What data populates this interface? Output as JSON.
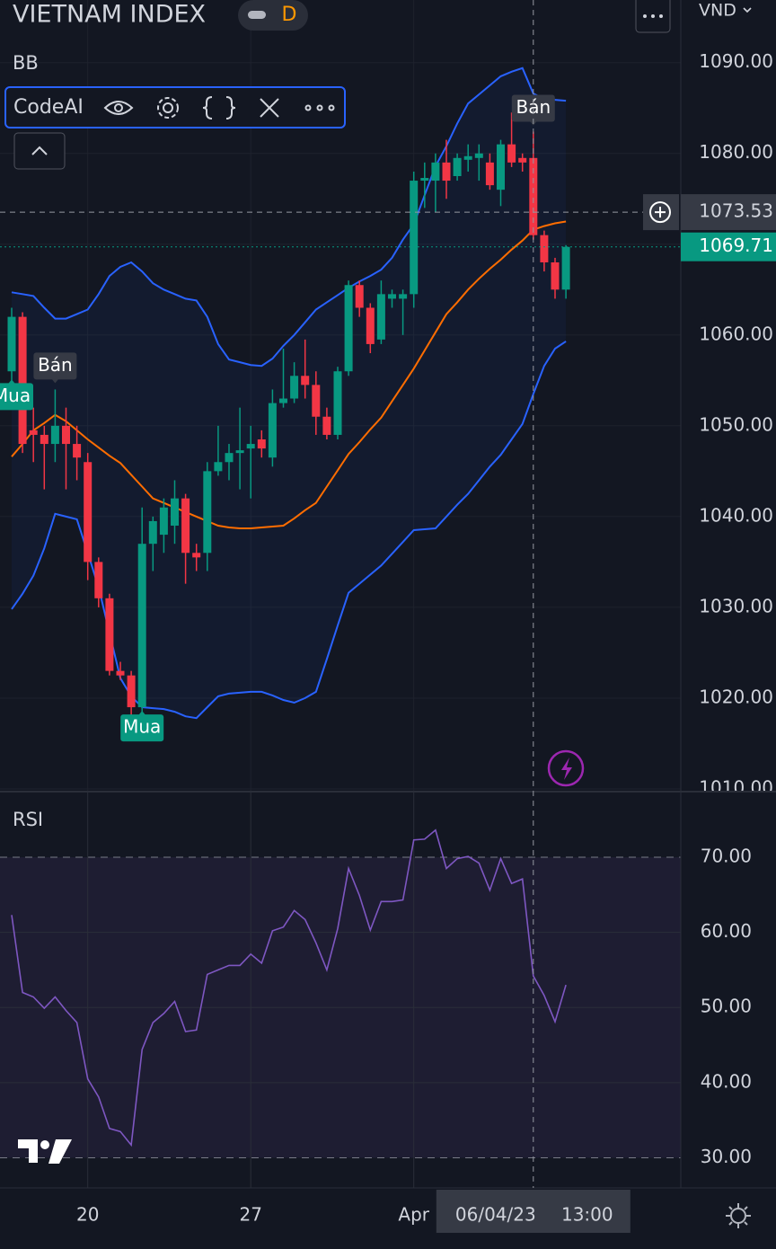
{
  "chart_data": [
    {
      "type": "candlestick",
      "title": "VIETNAM INDEX",
      "interval": "D",
      "currency": "VND",
      "panel": "CodeAI",
      "categories": [
        null,
        null,
        null,
        null,
        null,
        null,
        null,
        "20",
        null,
        null,
        null,
        null,
        null,
        null,
        null,
        null,
        null,
        null,
        null,
        null,
        null,
        null,
        "27",
        null,
        null,
        null,
        null,
        null,
        null,
        null,
        null,
        null,
        null,
        null,
        null,
        null,
        null,
        "Apr",
        null,
        null,
        null,
        null,
        null,
        null,
        null,
        null,
        null,
        null,
        null,
        null,
        null,
        null
      ],
      "open": [
        1056,
        1062,
        1049.5,
        1049,
        1048,
        1050,
        1048,
        1046,
        1035,
        1031,
        1023,
        1022.5,
        1019,
        1037,
        1038,
        1039,
        1042,
        1036,
        1036,
        1045,
        1046,
        1047,
        1047.5,
        1048.5,
        1046.5,
        1052.5,
        1053,
        1055.5,
        1054.5,
        1051,
        1049,
        1056,
        1065.5,
        1063,
        1059.5,
        1064,
        1064,
        1064.5,
        1077,
        1077,
        1079,
        1077.5,
        1079.3,
        1079.5,
        1079,
        1076,
        1081,
        1079.5,
        1079.5,
        1071,
        1068,
        1065
      ],
      "high": [
        1063,
        1062.5,
        1052,
        1050,
        1054,
        1052,
        1050,
        1047,
        1035.5,
        1031.5,
        1024,
        1023,
        1041,
        1040,
        1042,
        1044,
        1042.5,
        1037,
        1046,
        1050,
        1048,
        1052,
        1050,
        1049.5,
        1054,
        1058.5,
        1057,
        1059.5,
        1056,
        1052,
        1056.5,
        1066,
        1066,
        1063.5,
        1066,
        1065,
        1065,
        1078,
        1079,
        1080,
        1081.5,
        1080,
        1081,
        1081,
        1080,
        1081.5,
        1084.5,
        1080,
        1082.4,
        1071.5,
        1068.5,
        1069.9
      ],
      "low": [
        1055,
        1047,
        1046,
        1043,
        1046,
        1043,
        1044,
        1033,
        1030,
        1022.5,
        1022,
        1017,
        1018.5,
        1034,
        1036,
        1037,
        1032.6,
        1034,
        1034,
        1044.5,
        1044,
        1043,
        1042,
        1046.5,
        1045.5,
        1052,
        1052.5,
        1053,
        1049,
        1048.5,
        1048.5,
        1055.5,
        1062,
        1058,
        1059,
        1063,
        1060,
        1063,
        1074,
        1073.5,
        1075,
        1077,
        1078,
        1077,
        1076,
        1074.2,
        1078.5,
        1078,
        1070.5,
        1067,
        1064,
        1064
      ],
      "close": [
        1062,
        1048,
        1049,
        1048,
        1050,
        1048,
        1046.5,
        1035,
        1031,
        1023,
        1022.5,
        1019,
        1037,
        1039.5,
        1041,
        1042,
        1036,
        1035.5,
        1045,
        1046,
        1047,
        1047.3,
        1048,
        1047.5,
        1052.5,
        1053,
        1055.5,
        1054.5,
        1051,
        1049,
        1056,
        1065.5,
        1063,
        1059,
        1064.5,
        1064.5,
        1064.5,
        1077,
        1077.3,
        1079,
        1077,
        1079.5,
        1079.7,
        1080,
        1076.5,
        1081,
        1079,
        1079,
        1071,
        1068,
        1065,
        1069.71
      ],
      "up_color": "#089981",
      "down_color": "#f23645",
      "bb": {
        "name": "BB",
        "upper_color": "#2962ff",
        "middle_color": "#ff6d00",
        "fill": "#2962ff",
        "upper": [
          1064.7,
          1064.5,
          1064.3,
          1063,
          1061.8,
          1061.8,
          1062.3,
          1062.8,
          1064.5,
          1066.5,
          1067.5,
          1068,
          1067,
          1065.7,
          1065,
          1064.5,
          1064,
          1063.8,
          1062,
          1059,
          1057.3,
          1057,
          1056.7,
          1056.6,
          1057.4,
          1058.8,
          1060,
          1061.4,
          1062.8,
          1063.6,
          1064.4,
          1065.2,
          1065.9,
          1066.5,
          1067.2,
          1068.5,
          1070.5,
          1072.2,
          1075.4,
          1078.6,
          1080.8,
          1083.3,
          1085.5,
          1086.5,
          1087.5,
          1088.5,
          1089,
          1089.4,
          1086.6,
          1086,
          1085.9,
          1085.8
        ],
        "middle": [
          1046.6,
          1048,
          1049.5,
          1050.3,
          1051.2,
          1050.5,
          1049.5,
          1048.5,
          1047.6,
          1046.7,
          1045.9,
          1044.6,
          1043.3,
          1042,
          1041.5,
          1041,
          1040.5,
          1040,
          1039.5,
          1039,
          1038.8,
          1038.7,
          1038.7,
          1038.8,
          1038.9,
          1039,
          1039.8,
          1040.7,
          1041.5,
          1043.3,
          1045.1,
          1046.9,
          1048.2,
          1049.6,
          1050.9,
          1052.7,
          1054.5,
          1056.3,
          1058.3,
          1060.3,
          1062.3,
          1063.6,
          1065,
          1066.2,
          1067.3,
          1068.3,
          1069.4,
          1070.4,
          1071.6,
          1072,
          1072.3,
          1072.5
        ],
        "lower": [
          1029.8,
          1031.5,
          1033.5,
          1036.5,
          1040.3,
          1040,
          1039.7,
          1036,
          1032.2,
          1027.2,
          1022.2,
          1020.2,
          1019,
          1018.9,
          1018.8,
          1018.5,
          1018,
          1017.8,
          1019,
          1020.2,
          1020.5,
          1020.6,
          1020.7,
          1020.7,
          1020.3,
          1019.8,
          1019.5,
          1020,
          1020.7,
          1024.3,
          1028,
          1031.6,
          1032.6,
          1033.6,
          1034.6,
          1035.9,
          1037.2,
          1038.5,
          1038.6,
          1038.7,
          1040,
          1041.3,
          1042.5,
          1044,
          1045.5,
          1046.8,
          1048.5,
          1050.2,
          1053.5,
          1056.6,
          1058.5,
          1059.3
        ]
      },
      "signals": [
        {
          "label": "Mua",
          "candle": 0,
          "side": "buy"
        },
        {
          "label": "Bán",
          "candle": 4,
          "side": "sell"
        },
        {
          "label": "Mua",
          "candle": 12,
          "side": "buy"
        },
        {
          "label": "Bán",
          "candle": 48,
          "side": "sell"
        }
      ],
      "crosshair": {
        "candle": 48,
        "price": 1073.53,
        "date": "06/04/23",
        "time": "13:00"
      },
      "ylim": [
        1009.8,
        1096.9
      ],
      "yticks": [
        {
          "value": 1010,
          "label": "1010.00"
        },
        {
          "value": 1020,
          "label": "1020.00"
        },
        {
          "value": 1030,
          "label": "1030.00"
        },
        {
          "value": 1040,
          "label": "1040.00"
        },
        {
          "value": 1050,
          "label": "1050.00"
        },
        {
          "value": 1060,
          "label": "1060.00"
        },
        {
          "value": 1070,
          "label": "1070.00"
        },
        {
          "value": 1080,
          "label": "1080.00"
        },
        {
          "value": 1090,
          "label": "1090.00"
        }
      ],
      "grid": true
    },
    {
      "type": "line",
      "title": "RSI",
      "color": "#7e57c2",
      "values": [
        62.3,
        52,
        51.4,
        49.9,
        51.4,
        49.6,
        48,
        40.5,
        38.1,
        33.9,
        33.5,
        31.7,
        44.4,
        48,
        49.2,
        50.8,
        46.8,
        47,
        54.4,
        55,
        55.6,
        55.6,
        57.1,
        55.9,
        60.2,
        60.7,
        62.9,
        61.7,
        58.6,
        55,
        60.5,
        68.5,
        64.9,
        60.3,
        64.1,
        64.1,
        64.3,
        72.3,
        72.4,
        73.6,
        68.5,
        69.8,
        70.1,
        69.2,
        65.6,
        69.8,
        66.5,
        67.1,
        54.2,
        51.6,
        48.1,
        53
      ],
      "band": [
        30,
        70
      ],
      "ylim": [
        26,
        78.6
      ],
      "yticks": [
        {
          "value": 30,
          "label": "30.00"
        },
        {
          "value": 40,
          "label": "40.00"
        },
        {
          "value": 50,
          "label": "50.00"
        },
        {
          "value": 60,
          "label": "60.00"
        },
        {
          "value": 70,
          "label": "70.00"
        }
      ],
      "grid": true
    }
  ]
}
